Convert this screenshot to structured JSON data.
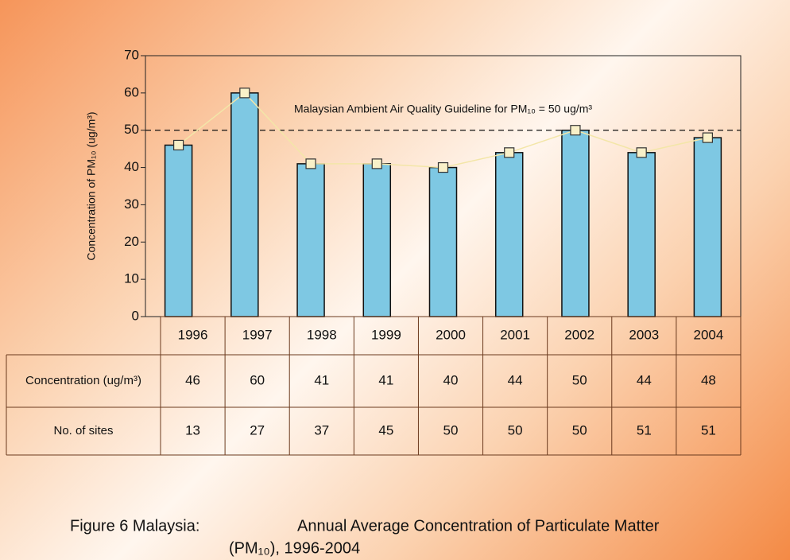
{
  "chart_data": {
    "type": "bar",
    "categories": [
      "1996",
      "1997",
      "1998",
      "1999",
      "2000",
      "2001",
      "2002",
      "2003",
      "2004"
    ],
    "values": [
      46,
      60,
      41,
      41,
      40,
      44,
      50,
      44,
      48
    ],
    "sites": [
      13,
      27,
      37,
      45,
      50,
      50,
      50,
      51,
      51
    ],
    "row_labels": [
      "Concentration (ug/m³)",
      "No. of sites"
    ],
    "color": "#7ec8e3",
    "line_color": "#f3e6a8",
    "marker_color": "#f8f0c8",
    "ylim": [
      0,
      70
    ],
    "yticks": [
      0,
      10,
      20,
      30,
      40,
      50,
      60,
      70
    ],
    "ylabel": "Concentration of PM₁₀ (ug/m³)",
    "guideline": {
      "value": 50,
      "label": "Malaysian Ambient Air Quality Guideline for PM₁₀ = 50 ug/m³"
    },
    "caption": [
      "Figure 6 Malaysia:",
      "Annual Average Concentration of Particulate Matter",
      "(PM₁₀), 1996-2004"
    ]
  }
}
